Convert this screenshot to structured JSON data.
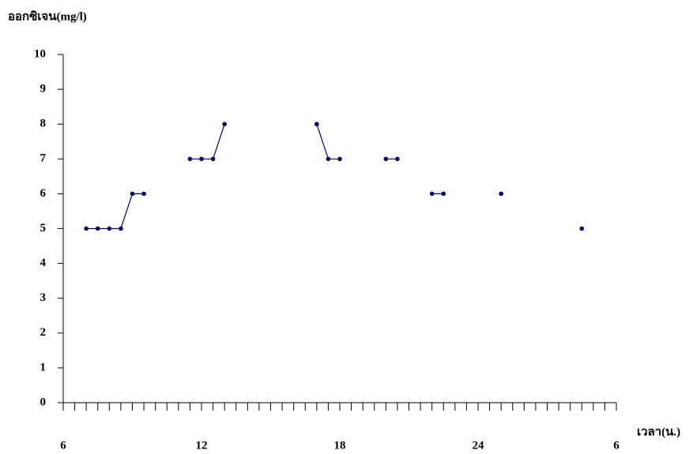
{
  "chart_data": {
    "type": "line",
    "y_label": "ออกซิเจน(mg/l)",
    "x_label": "เวลา(น.)",
    "x": [
      7,
      7.5,
      8,
      8.5,
      9,
      9.5,
      10,
      11.5,
      12,
      12.5,
      13,
      15,
      17,
      17.5,
      18,
      19,
      20,
      20.5,
      21,
      22,
      22.5,
      24,
      25,
      27,
      28.5
    ],
    "series": [
      {
        "name": "ออกซิเจน",
        "color": "#000080",
        "values": [
          5,
          5,
          5,
          5,
          6,
          6,
          null,
          7,
          7,
          7,
          8,
          null,
          8,
          7,
          7,
          null,
          7,
          7,
          null,
          6,
          6,
          null,
          6,
          null,
          5
        ]
      }
    ],
    "xlim": [
      6,
      30
    ],
    "ylim": [
      0,
      10
    ],
    "xticks": [
      6,
      12,
      18,
      24,
      {
        "value": 30,
        "label": "6"
      }
    ],
    "xminorticks": [
      6.5,
      7,
      7.5,
      8,
      8.5,
      9,
      9.5,
      10,
      10.5,
      11,
      11.5,
      12,
      12.5,
      13,
      13.5,
      14,
      14.5,
      15,
      15.5,
      16,
      16.5,
      17,
      17.5,
      18,
      18.5,
      19,
      19.5,
      20,
      20.5,
      21,
      21.5,
      22,
      22.5,
      23,
      23.5,
      24,
      24.5,
      25,
      25.5,
      26,
      26.5,
      27,
      27.5,
      28,
      28.5,
      29,
      29.5,
      30
    ],
    "yticks": [
      0,
      1,
      2,
      3,
      4,
      5,
      6,
      7,
      8,
      9,
      10
    ],
    "grid": false
  }
}
